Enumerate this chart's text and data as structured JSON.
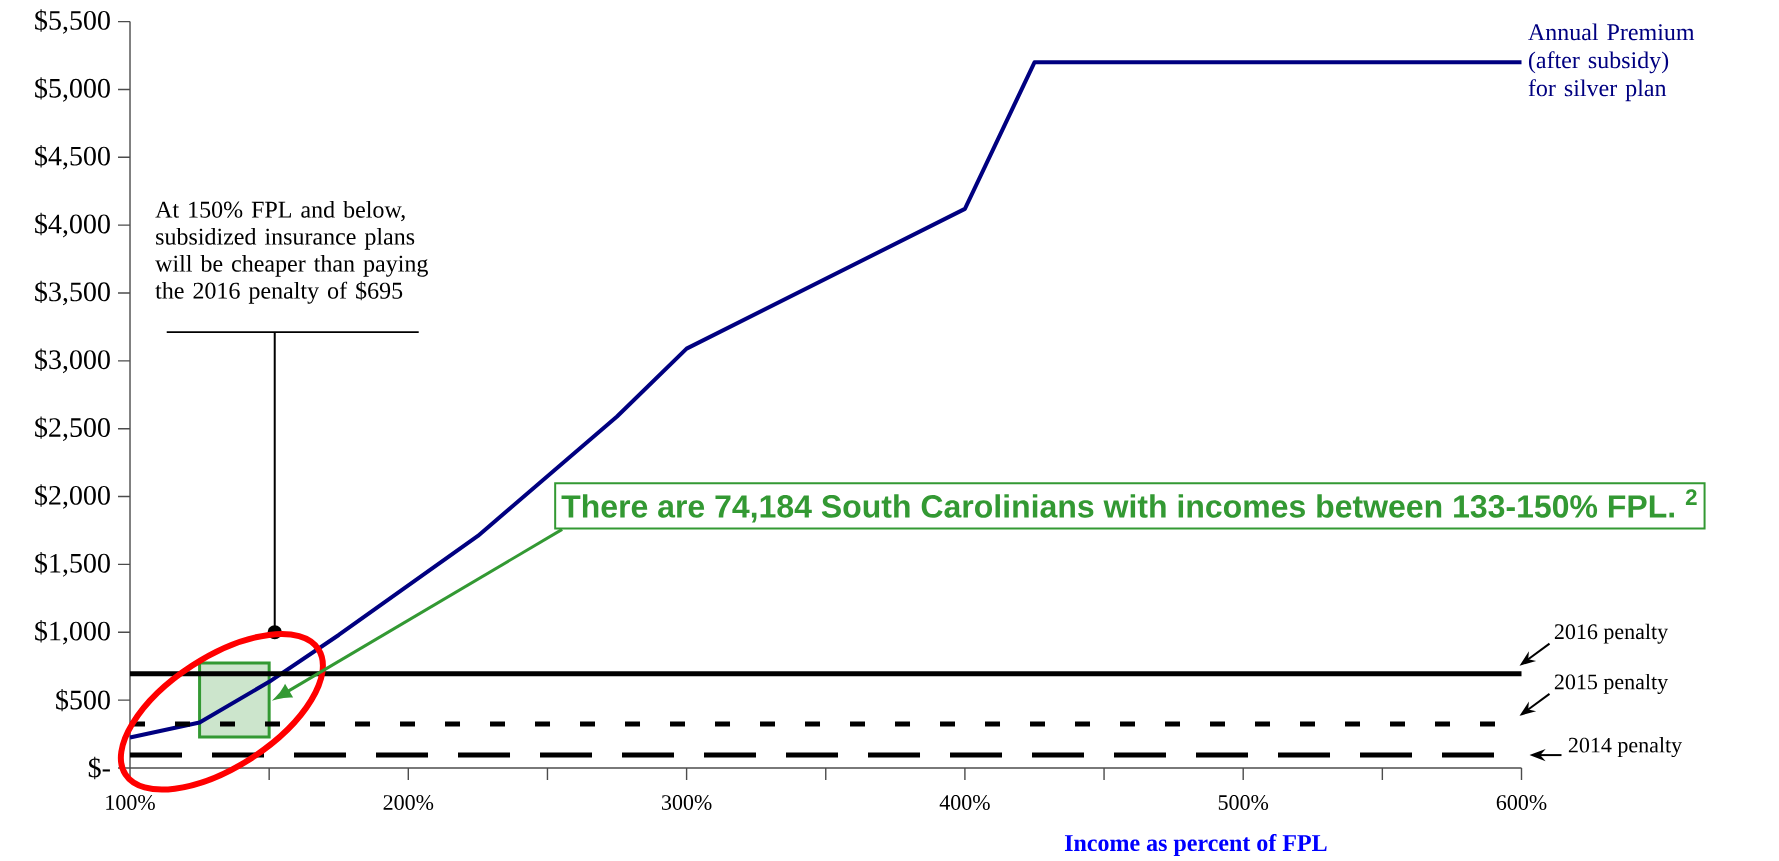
{
  "chart_data": {
    "type": "line",
    "xlabel": "Income as percent of FPL",
    "x": [
      100,
      125,
      150,
      175,
      225,
      275,
      300,
      400,
      425,
      600
    ],
    "series": [
      {
        "name": "Annual Premium (after subsidy) for silver plan",
        "color": "#000080",
        "values": [
          225,
          335,
          635,
          980,
          1710,
          2590,
          3090,
          4120,
          5200,
          5200
        ]
      }
    ],
    "xlim": [
      100,
      600
    ],
    "xticks": [
      {
        "value": 100,
        "label": "100%"
      },
      {
        "value": 150,
        "label": null
      },
      {
        "value": 200,
        "label": "200%"
      },
      {
        "value": 250,
        "label": null
      },
      {
        "value": 300,
        "label": "300%"
      },
      {
        "value": 350,
        "label": null
      },
      {
        "value": 400,
        "label": "400%"
      },
      {
        "value": 450,
        "label": null
      },
      {
        "value": 500,
        "label": "500%"
      },
      {
        "value": 550,
        "label": null
      },
      {
        "value": 600,
        "label": "600%"
      }
    ],
    "ylim": [
      0,
      5500
    ],
    "yticks": [
      {
        "value": 0,
        "label": "$-"
      },
      {
        "value": 500,
        "label": "$500"
      },
      {
        "value": 1000,
        "label": "$1,000"
      },
      {
        "value": 1500,
        "label": "$1,500"
      },
      {
        "value": 2000,
        "label": "$2,000"
      },
      {
        "value": 2500,
        "label": "$2,500"
      },
      {
        "value": 3000,
        "label": "$3,000"
      },
      {
        "value": 3500,
        "label": "$3,500"
      },
      {
        "value": 4000,
        "label": "$4,000"
      },
      {
        "value": 4500,
        "label": "$4,500"
      },
      {
        "value": 5000,
        "label": "$5,000"
      },
      {
        "value": 5500,
        "label": "$5,500"
      }
    ],
    "ref_lines": [
      {
        "axis": "y",
        "value": 695,
        "label": "2016 penalty",
        "color": "#000000",
        "line_style": "solid"
      },
      {
        "axis": "y",
        "value": 325,
        "label": "2015 penalty",
        "color": "#000000",
        "line_style": "dotted"
      },
      {
        "axis": "y",
        "value": 95,
        "label": "2014 penalty",
        "color": "#000000",
        "line_style": "dashed"
      }
    ],
    "bands": [
      {
        "axis": "x",
        "from": 125,
        "to": 150,
        "color": "#cce5cc"
      }
    ],
    "annotations": [
      "At 150% FPL and below, subsidized insurance plans will be cheaper than paying the 2016 penalty of $695",
      "There are 74,184 South Carolinians with incomes between 133-150% FPL. $^{2}$"
    ]
  }
}
